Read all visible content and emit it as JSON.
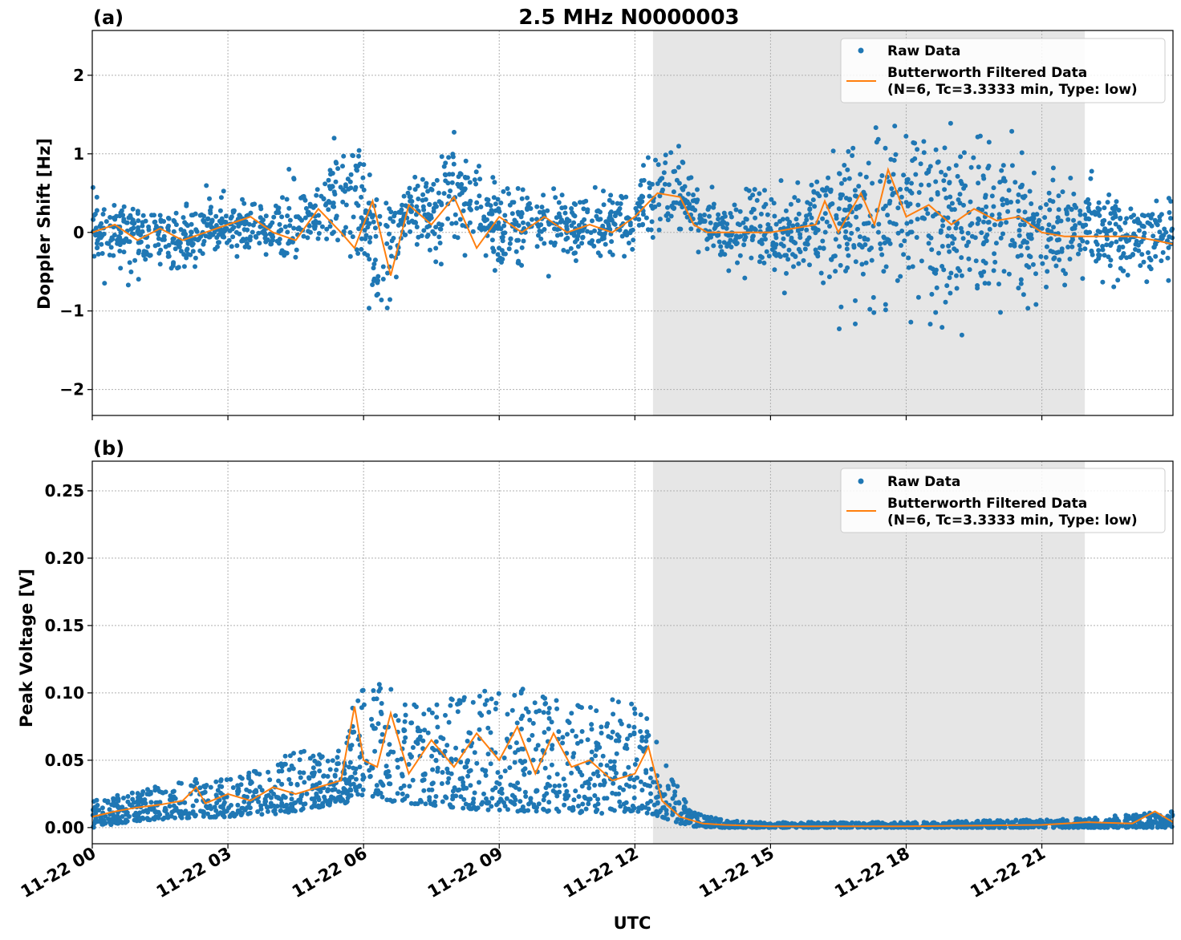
{
  "figure": {
    "title": "2.5 MHz N0000003",
    "xlabel": "UTC",
    "colors": {
      "raw": "#1f77b4",
      "filtered": "#ff7f0e",
      "night_shade": "#e6e6e6"
    },
    "x_ticks": [
      "11-22 00",
      "11-22 03",
      "11-22 06",
      "11-22 09",
      "11-22 12",
      "11-22 15",
      "11-22 18",
      "11-22 21"
    ],
    "x_tick_hours": [
      0,
      3,
      6,
      9,
      12,
      15,
      18,
      21
    ],
    "xlim_hours": [
      0,
      23.9
    ],
    "shaded_span_hours": [
      12.4,
      21.95
    ]
  },
  "legend": {
    "raw_label": "Raw Data",
    "filtered_line1": "Butterworth Filtered Data",
    "filtered_line2": "(N=6, Tc=3.3333 min, Type: low)"
  },
  "chart_data": [
    {
      "type": "scatter+line",
      "panel_label": "(a)",
      "ylabel": "Doppler Shift [Hz]",
      "ylim": [
        -2.33,
        2.57
      ],
      "yticks": [
        -2,
        -1,
        0,
        1,
        2
      ],
      "ytick_labels": [
        "−2",
        "−1",
        "0",
        "1",
        "2"
      ],
      "series": [
        {
          "name": "Raw Data (envelope: hour, median, spread)",
          "x": [
            0,
            1,
            2,
            3,
            4,
            5,
            5.8,
            6.5,
            7,
            7.5,
            8,
            9,
            10,
            11,
            12,
            12.4,
            13,
            13.5,
            14,
            15,
            16,
            17,
            18,
            19,
            20,
            21,
            22,
            23,
            23.9
          ],
          "center": [
            0.05,
            -0.05,
            -0.1,
            0.1,
            0,
            0.3,
            0.4,
            -0.5,
            0.3,
            0.1,
            0.6,
            0.0,
            0.1,
            0.05,
            0.2,
            0.5,
            0.5,
            0.1,
            0,
            0,
            0.1,
            0.2,
            0.2,
            0.1,
            0.1,
            0,
            0,
            -0.05,
            -0.1
          ],
          "spread": [
            0.35,
            0.35,
            0.35,
            0.35,
            0.35,
            0.5,
            0.7,
            0.7,
            0.5,
            0.5,
            0.6,
            0.45,
            0.4,
            0.35,
            0.35,
            0.4,
            0.45,
            0.3,
            0.3,
            0.45,
            0.6,
            0.9,
            1.0,
            1.0,
            0.9,
            0.6,
            0.5,
            0.45,
            0.45
          ]
        },
        {
          "name": "Butterworth Filtered Data",
          "x": [
            0,
            0.5,
            1,
            1.5,
            2,
            2.5,
            3,
            3.5,
            4,
            4.5,
            5,
            5.5,
            5.8,
            6.2,
            6.6,
            7,
            7.5,
            8,
            8.5,
            9,
            9.5,
            10,
            10.5,
            11,
            11.5,
            12,
            12.5,
            13,
            13.3,
            13.6,
            14,
            15,
            15.5,
            16,
            16.2,
            16.5,
            17,
            17.3,
            17.6,
            18,
            18.5,
            19,
            19.5,
            20,
            20.5,
            21,
            21.5,
            22,
            22.5,
            23,
            23.5,
            23.9
          ],
          "y": [
            0.0,
            0.1,
            -0.1,
            0.05,
            -0.1,
            0.0,
            0.1,
            0.2,
            0.0,
            -0.1,
            0.3,
            0.0,
            -0.2,
            0.4,
            -0.55,
            0.35,
            0.1,
            0.45,
            -0.2,
            0.2,
            0.0,
            0.2,
            0.0,
            0.1,
            0.0,
            0.2,
            0.5,
            0.45,
            0.1,
            0.0,
            0.0,
            0.0,
            0.05,
            0.1,
            0.4,
            0.0,
            0.5,
            0.1,
            0.8,
            0.2,
            0.35,
            0.1,
            0.3,
            0.15,
            0.2,
            0.0,
            -0.05,
            -0.05,
            -0.05,
            -0.05,
            -0.1,
            -0.15
          ]
        }
      ]
    },
    {
      "type": "scatter+line",
      "panel_label": "(b)",
      "ylabel": "Peak Voltage [V]",
      "ylim": [
        -0.012,
        0.272
      ],
      "yticks": [
        0.0,
        0.05,
        0.1,
        0.15,
        0.2,
        0.25
      ],
      "ytick_labels": [
        "0.00",
        "0.05",
        "0.10",
        "0.15",
        "0.20",
        "0.25"
      ],
      "series": [
        {
          "name": "Raw Data (envelope: hour, lower, upper)",
          "x": [
            0,
            1,
            2,
            3,
            4,
            4.5,
            5,
            5.6,
            5.8,
            6.5,
            7,
            8,
            9,
            10,
            11,
            12,
            12.4,
            12.8,
            13.2,
            14,
            15,
            18,
            21,
            22,
            23,
            23.9
          ],
          "lower": [
            0.0,
            0.005,
            0.007,
            0.008,
            0.01,
            0.012,
            0.015,
            0.018,
            0.025,
            0.02,
            0.018,
            0.015,
            0.012,
            0.012,
            0.01,
            0.012,
            0.01,
            0.005,
            0.001,
            0.0,
            0.0,
            0.0,
            0.0,
            0.0,
            0.0,
            0.0
          ],
          "upper": [
            0.02,
            0.028,
            0.035,
            0.04,
            0.045,
            0.06,
            0.055,
            0.06,
            0.1,
            0.11,
            0.09,
            0.1,
            0.11,
            0.1,
            0.09,
            0.1,
            0.075,
            0.04,
            0.015,
            0.005,
            0.004,
            0.004,
            0.006,
            0.007,
            0.01,
            0.012
          ]
        },
        {
          "name": "Butterworth Filtered Data",
          "x": [
            0,
            0.5,
            1,
            1.5,
            2,
            2.3,
            2.5,
            3,
            3.5,
            4,
            4.5,
            5,
            5.5,
            5.8,
            6.0,
            6.3,
            6.6,
            7,
            7.5,
            8,
            8.5,
            9,
            9.4,
            9.8,
            10.2,
            10.6,
            11,
            11.5,
            12,
            12.3,
            12.6,
            13,
            13.5,
            14,
            15,
            18,
            21,
            22,
            23,
            23.5,
            23.9
          ],
          "y": [
            0.008,
            0.012,
            0.015,
            0.017,
            0.02,
            0.03,
            0.018,
            0.025,
            0.02,
            0.03,
            0.025,
            0.03,
            0.035,
            0.09,
            0.05,
            0.045,
            0.085,
            0.04,
            0.065,
            0.045,
            0.07,
            0.05,
            0.075,
            0.04,
            0.07,
            0.045,
            0.05,
            0.035,
            0.04,
            0.06,
            0.02,
            0.008,
            0.003,
            0.002,
            0.001,
            0.001,
            0.002,
            0.004,
            0.003,
            0.012,
            0.004
          ]
        }
      ]
    }
  ]
}
